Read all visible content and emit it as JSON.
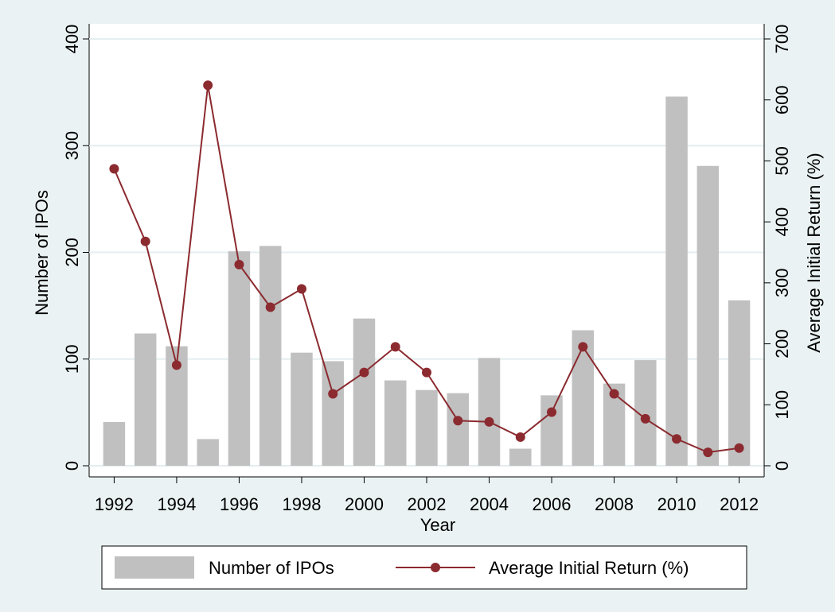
{
  "chart_data": {
    "type": "bar-line",
    "x": [
      1992,
      1993,
      1994,
      1995,
      1996,
      1997,
      1998,
      1999,
      2000,
      2001,
      2002,
      2003,
      2004,
      2005,
      2006,
      2007,
      2008,
      2009,
      2010,
      2011,
      2012
    ],
    "series": [
      {
        "name": "Number of IPOs",
        "type": "bar",
        "color": "#c0c0c0",
        "axis": "y",
        "values": [
          41,
          124,
          112,
          25,
          201,
          206,
          106,
          98,
          138,
          80,
          71,
          68,
          101,
          16,
          66,
          127,
          77,
          99,
          346,
          281,
          155
        ]
      },
      {
        "name": "Average Initial Return (%)",
        "type": "line",
        "color": "#8b2a2f",
        "axis": "y2",
        "values": [
          487,
          368,
          165,
          624,
          330,
          260,
          290,
          118,
          153,
          195,
          153,
          74,
          72,
          47,
          88,
          195,
          118,
          77,
          44,
          22,
          29
        ]
      }
    ],
    "x_label": "Year",
    "y_label": "Number of IPOs",
    "y2_label": "Average Initial Return (%)",
    "xlim": [
      1991.2,
      2012.8
    ],
    "xticks": [
      1992,
      1994,
      1996,
      1998,
      2000,
      2002,
      2004,
      2006,
      2008,
      2010,
      2012
    ],
    "ylim": [
      0,
      400
    ],
    "yticks": [
      0,
      100,
      200,
      300,
      400
    ],
    "y2lim": [
      0,
      700
    ],
    "y2ticks": [
      0,
      100,
      200,
      300,
      400,
      500,
      600,
      700
    ],
    "grid": true,
    "legend": "bottom"
  }
}
